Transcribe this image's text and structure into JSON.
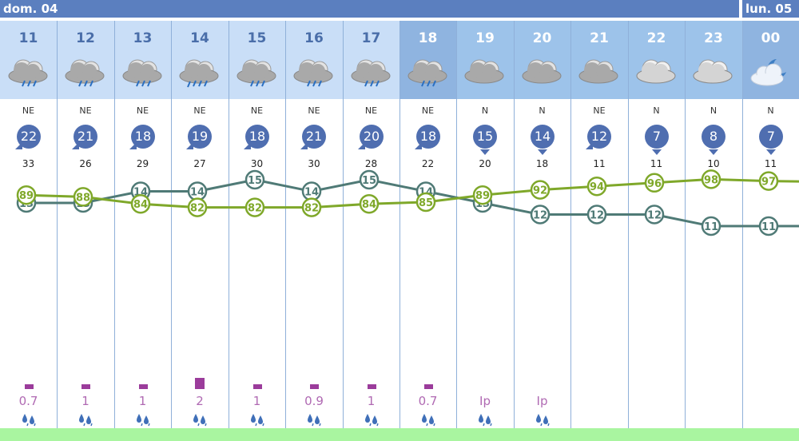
{
  "days": [
    {
      "label": "dom. 04"
    },
    {
      "label": "lun. 05"
    }
  ],
  "hours": [
    {
      "hour": "11",
      "icon": "rain-cloud-icon",
      "night": false,
      "dir": "NE",
      "wind": "22",
      "gust": "33",
      "rain": "0.7",
      "rain_level": 1
    },
    {
      "hour": "12",
      "icon": "rain-cloud-icon",
      "night": false,
      "dir": "NE",
      "wind": "21",
      "gust": "26",
      "rain": "1",
      "rain_level": 1
    },
    {
      "hour": "13",
      "icon": "rain-cloud-icon",
      "night": false,
      "dir": "NE",
      "wind": "18",
      "gust": "29",
      "rain": "1",
      "rain_level": 1
    },
    {
      "hour": "14",
      "icon": "heavy-rain-cloud-icon",
      "night": false,
      "dir": "NE",
      "wind": "19",
      "gust": "27",
      "rain": "2",
      "rain_level": 2
    },
    {
      "hour": "15",
      "icon": "rain-cloud-icon",
      "night": false,
      "dir": "NE",
      "wind": "18",
      "gust": "30",
      "rain": "1",
      "rain_level": 1
    },
    {
      "hour": "16",
      "icon": "rain-cloud-icon",
      "night": false,
      "dir": "NE",
      "wind": "21",
      "gust": "30",
      "rain": "0.9",
      "rain_level": 1
    },
    {
      "hour": "17",
      "icon": "rain-cloud-icon",
      "night": false,
      "dir": "NE",
      "wind": "20",
      "gust": "28",
      "rain": "1",
      "rain_level": 1
    },
    {
      "hour": "18",
      "icon": "rain-cloud-icon",
      "night": true,
      "dir": "NE",
      "wind": "18",
      "gust": "22",
      "rain": "0.7",
      "rain_level": 1
    },
    {
      "hour": "19",
      "icon": "cloud-icon",
      "night": true,
      "dir": "N",
      "wind": "15",
      "gust": "20",
      "rain": "Ip",
      "rain_level": 0
    },
    {
      "hour": "20",
      "icon": "cloud-icon",
      "night": true,
      "dir": "N",
      "wind": "14",
      "gust": "18",
      "rain": "Ip",
      "rain_level": 0
    },
    {
      "hour": "21",
      "icon": "cloud-icon",
      "night": true,
      "dir": "NE",
      "wind": "12",
      "gust": "11",
      "rain": "",
      "rain_level": 0
    },
    {
      "hour": "22",
      "icon": "light-cloud-icon",
      "night": true,
      "dir": "N",
      "wind": "7",
      "gust": "11",
      "rain": "",
      "rain_level": 0
    },
    {
      "hour": "23",
      "icon": "light-cloud-icon",
      "night": true,
      "dir": "N",
      "wind": "8",
      "gust": "10",
      "rain": "",
      "rain_level": 0
    },
    {
      "hour": "00",
      "icon": "moon-cloud-icon",
      "night": true,
      "dir": "N",
      "wind": "7",
      "gust": "11",
      "rain": "",
      "rain_level": 0
    }
  ],
  "chart_data": {
    "type": "line",
    "x": [
      "11",
      "12",
      "13",
      "14",
      "15",
      "16",
      "17",
      "18",
      "19",
      "20",
      "21",
      "22",
      "23",
      "00"
    ],
    "series": [
      {
        "values": [
          13,
          13,
          14,
          14,
          15,
          14,
          15,
          14,
          13,
          12,
          12,
          12,
          11,
          11
        ]
      },
      {
        "values": [
          89,
          88,
          84,
          82,
          82,
          82,
          84,
          85,
          89,
          92,
          94,
          96,
          98,
          97
        ]
      }
    ]
  },
  "colors": {
    "day_header": "#c9def7",
    "night_header": "#9dc3ea",
    "night_header_dark": "#8fb4e0",
    "temperature": "#4f7a76",
    "humidity": "#7fa82a",
    "wind_badge": "#4f6eb0",
    "precip_bar": "#9b3c9b",
    "precip_text": "#b06ab3",
    "footer": "#a9f5a0"
  }
}
